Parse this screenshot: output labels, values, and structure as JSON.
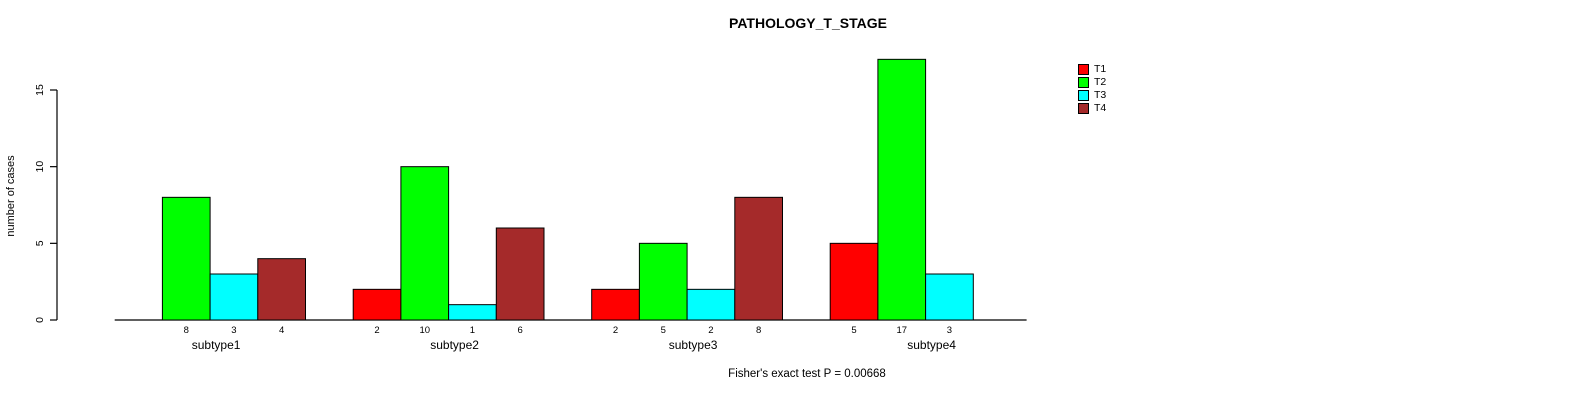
{
  "window": {
    "background": "#ffffff"
  },
  "chart_data": {
    "type": "bar",
    "title": "PATHOLOGY_T_STAGE",
    "xlabel": "",
    "ylabel": "number of cases",
    "ylim": [
      0,
      17
    ],
    "yticks": [
      0,
      5,
      10,
      15
    ],
    "grid": false,
    "legend_position": "top-right",
    "bar_value_labels": true,
    "categories": [
      "subtype1",
      "subtype2",
      "subtype3",
      "subtype4"
    ],
    "series": [
      {
        "name": "T1",
        "color": "#FF0000",
        "values": [
          null,
          2,
          2,
          5
        ]
      },
      {
        "name": "T2",
        "color": "#00FF00",
        "values": [
          8,
          10,
          5,
          17
        ]
      },
      {
        "name": "T3",
        "color": "#00FFFF",
        "values": [
          3,
          1,
          2,
          3
        ]
      },
      {
        "name": "T4",
        "color": "#A52A2A",
        "values": [
          4,
          6,
          8,
          null
        ]
      }
    ],
    "footer": "Fisher's exact test P = 0.00668",
    "axis_color": "#000000",
    "bar_border_color": "#000000"
  }
}
